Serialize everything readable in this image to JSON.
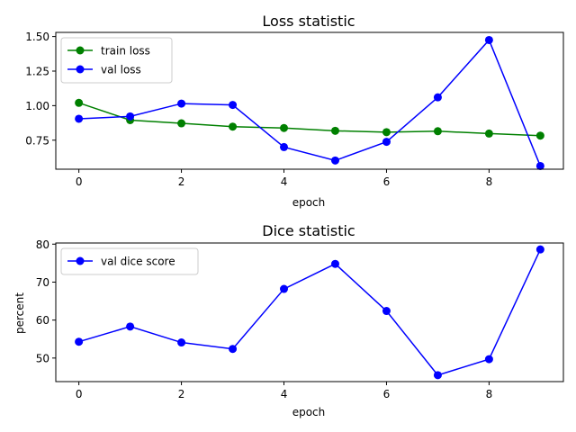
{
  "chart_data": [
    {
      "type": "line",
      "title": "Loss statistic",
      "xlabel": "epoch",
      "ylabel": "",
      "xlim": [
        -0.45,
        9.45
      ],
      "ylim": [
        0.54,
        1.53
      ],
      "xticks": [
        0,
        2,
        4,
        6,
        8
      ],
      "yticks": [
        0.75,
        1.0,
        1.25,
        1.5
      ],
      "ytick_labels": [
        "0.75",
        "1.00",
        "1.25",
        "1.50"
      ],
      "grid": false,
      "legend": "top-left",
      "series": [
        {
          "name": "train loss",
          "color": "#008000",
          "x": [
            0,
            1,
            2,
            3,
            4,
            5,
            6,
            7,
            8,
            9
          ],
          "y": [
            1.02,
            0.895,
            0.872,
            0.848,
            0.838,
            0.818,
            0.808,
            0.815,
            0.798,
            0.783
          ]
        },
        {
          "name": "val loss",
          "color": "#0000ff",
          "x": [
            0,
            1,
            2,
            3,
            4,
            5,
            6,
            7,
            8,
            9
          ],
          "y": [
            0.905,
            0.922,
            1.015,
            1.005,
            0.7,
            0.603,
            0.738,
            1.06,
            1.475,
            0.563
          ]
        }
      ]
    },
    {
      "type": "line",
      "title": "Dice statistic",
      "xlabel": "epoch",
      "ylabel": "percent",
      "xlim": [
        -0.45,
        9.45
      ],
      "ylim": [
        43.8,
        80.3
      ],
      "xticks": [
        0,
        2,
        4,
        6,
        8
      ],
      "yticks": [
        50,
        60,
        70,
        80
      ],
      "ytick_labels": [
        "50",
        "60",
        "70",
        "80"
      ],
      "grid": false,
      "legend": "top-left",
      "series": [
        {
          "name": "val dice score",
          "color": "#0000ff",
          "x": [
            0,
            1,
            2,
            3,
            4,
            5,
            6,
            7,
            8,
            9
          ],
          "y": [
            54.3,
            58.3,
            54.1,
            52.4,
            68.2,
            74.8,
            62.4,
            45.5,
            49.7,
            78.6
          ]
        }
      ]
    }
  ]
}
